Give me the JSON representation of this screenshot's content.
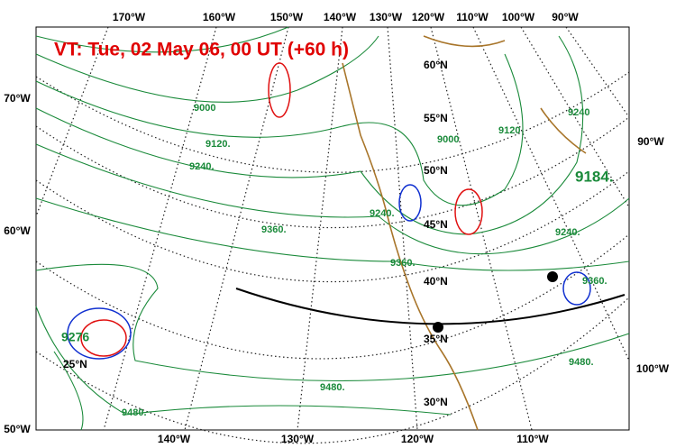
{
  "title": "VT: Tue, 02 May 06, 00 UT (+60 h)",
  "longitude_labels": {
    "top": [
      "170°W",
      "160°W",
      "150°W",
      "140°W",
      "130°W",
      "120°W",
      "110°W",
      "100°W",
      "90°W"
    ],
    "left": [
      "70°W",
      "60°W",
      "50°W"
    ],
    "right": [
      "90°W",
      "100°W"
    ],
    "bottom": [
      "140°W",
      "130°W",
      "120°W",
      "110°W"
    ]
  },
  "latitude_labels": [
    "60°N",
    "55°N",
    "50°N",
    "45°N",
    "40°N",
    "35°N",
    "30°N",
    "25°N"
  ],
  "contour_labels": [
    "9000",
    "9120.",
    "9240.",
    "9360.",
    "9240.",
    "9360.",
    "9480.",
    "9480.",
    "9120",
    "9000",
    "9240",
    "9184.",
    "9240.",
    "9360.",
    "9480.",
    "9276"
  ]
}
